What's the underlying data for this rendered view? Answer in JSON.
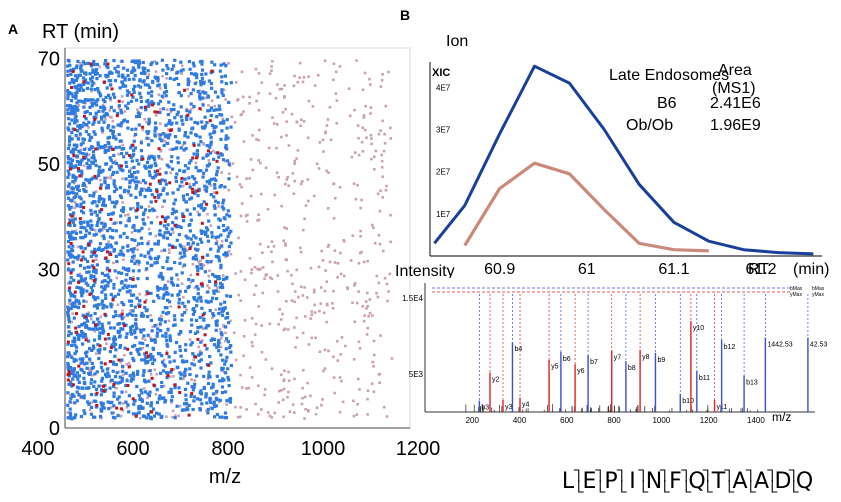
{
  "panel_a": {
    "letter": "A",
    "ylabel": "RT (min)",
    "xlabel": "m/z"
  },
  "panel_b": {
    "letter": "B",
    "ion_label": "Ion",
    "xic_label": "XIC",
    "legend": {
      "header_area": "Area",
      "header_ms1": "(MS1)",
      "header_group": "Late Endosomes",
      "rows": [
        {
          "name": "B6",
          "area": "2.41E6",
          "color": "#c98a7c"
        },
        {
          "name": "Ob/Ob",
          "area": "1.96E9",
          "color": "#1a3f9a"
        }
      ]
    },
    "xlabel": "RT",
    "xunit": "(min)",
    "ms2_ylabel": "Intensity",
    "ms2_xlabel": "m/z"
  },
  "peptide": {
    "sequence": [
      "L",
      "E",
      "P",
      "I",
      "N",
      "F",
      "Q",
      "T",
      "A",
      "A",
      "D",
      "Q"
    ]
  },
  "chart_data": [
    {
      "type": "scatter",
      "title": "",
      "xlabel": "m/z",
      "ylabel": "RT (min)",
      "xlim": [
        400,
        1300
      ],
      "ylim": [
        0,
        72
      ],
      "x_ticks": [
        400,
        600,
        800,
        1000,
        1200
      ],
      "y_ticks": [
        0,
        30,
        50,
        70
      ],
      "series": [
        {
          "color": "#2f7be0",
          "density": "high, m/z 400-800"
        },
        {
          "color": "#c9a0b4",
          "density": "moderate, m/z 400-1250"
        },
        {
          "color": "#c0141e",
          "density": "low, m/z 400-800"
        }
      ]
    },
    {
      "type": "line",
      "xlabel": "RT",
      "xunit": "(min)",
      "ylabel": "XIC",
      "xlim": [
        60.82,
        61.27
      ],
      "ylim": [
        0,
        46000000.0
      ],
      "x_ticks": [
        60.9,
        61,
        61.1,
        61.2
      ],
      "x_tick_labels": [
        "60.9",
        "61",
        "61.1",
        "61.2"
      ],
      "y_ticks": [
        10000000.0,
        20000000.0,
        30000000.0,
        40000000.0
      ],
      "y_tick_labels": [
        "1E7",
        "2E7",
        "3E7",
        "4E7"
      ],
      "series": [
        {
          "name": "Ob/Ob",
          "color": "#1a3f9a",
          "x": [
            60.825,
            60.86,
            60.9,
            60.94,
            60.98,
            61.02,
            61.06,
            61.1,
            61.14,
            61.18,
            61.22,
            61.26
          ],
          "y": [
            3000000.0,
            12000000.0,
            29000000.0,
            45000000.0,
            41000000.0,
            30000000.0,
            17000000.0,
            8000000.0,
            3500000.0,
            1500000.0,
            800000.0,
            500000.0
          ]
        },
        {
          "name": "B6",
          "color": "#c98a7c",
          "x": [
            60.86,
            60.9,
            60.94,
            60.98,
            61.02,
            61.06,
            61.1,
            61.14
          ],
          "y": [
            2500000.0,
            16000000.0,
            22000000.0,
            19500000.0,
            11000000.0,
            3000000.0,
            1500000.0,
            1200000.0
          ]
        }
      ]
    },
    {
      "type": "bar",
      "xlabel": "m/z",
      "ylabel": "Intensity",
      "xlim": [
        0,
        1650
      ],
      "ylim": [
        0,
        17000
      ],
      "x_ticks": [
        200,
        400,
        600,
        800,
        1000,
        1200,
        1400
      ],
      "y_ticks": [
        5000,
        15000
      ],
      "y_tick_labels": [
        "5E3",
        "1.5E4"
      ],
      "peaks": [
        {
          "mz": 230,
          "intensity": 1500,
          "label": "b3",
          "color": "#3a4fd4"
        },
        {
          "mz": 275,
          "intensity": 5200,
          "label": "y2",
          "color": "#e0202a"
        },
        {
          "mz": 330,
          "intensity": 1600,
          "label": "y3",
          "color": "#e0202a"
        },
        {
          "mz": 370,
          "intensity": 9200,
          "label": "b4",
          "color": "#3a4fd4"
        },
        {
          "mz": 402,
          "intensity": 1900,
          "label": "y4",
          "color": "#e0202a"
        },
        {
          "mz": 525,
          "intensity": 6900,
          "label": "y5",
          "color": "#e0202a"
        },
        {
          "mz": 575,
          "intensity": 7900,
          "label": "b6",
          "color": "#3a4fd4"
        },
        {
          "mz": 635,
          "intensity": 6300,
          "label": "y6",
          "color": "#e0202a"
        },
        {
          "mz": 690,
          "intensity": 7500,
          "label": "b7",
          "color": "#3a4fd4"
        },
        {
          "mz": 790,
          "intensity": 8100,
          "label": "y7",
          "color": "#e0202a"
        },
        {
          "mz": 850,
          "intensity": 6700,
          "label": "b8",
          "color": "#3a4fd4"
        },
        {
          "mz": 910,
          "intensity": 8200,
          "label": "y8",
          "color": "#e0202a"
        },
        {
          "mz": 975,
          "intensity": 7800,
          "label": "b9",
          "color": "#3a4fd4"
        },
        {
          "mz": 1080,
          "intensity": 2400,
          "label": "b10",
          "color": "#3a4fd4"
        },
        {
          "mz": 1125,
          "intensity": 12000,
          "label": "y10",
          "color": "#e0202a"
        },
        {
          "mz": 1150,
          "intensity": 5400,
          "label": "b11",
          "color": "#3a4fd4"
        },
        {
          "mz": 1225,
          "intensity": 1600,
          "label": "y11",
          "color": "#e0202a"
        },
        {
          "mz": 1255,
          "intensity": 9500,
          "label": "b12",
          "color": "#3a4fd4"
        },
        {
          "mz": 1350,
          "intensity": 4800,
          "label": "b13",
          "color": "#3a4fd4"
        },
        {
          "mz": 1440,
          "intensity": 9800,
          "label": "1442.53",
          "color": "#3a4fd4"
        },
        {
          "mz": 1620,
          "intensity": 9800,
          "label": "42.53",
          "color": "#3a4fd4"
        }
      ],
      "header_labels": [
        "bMax",
        "yMax"
      ]
    }
  ]
}
